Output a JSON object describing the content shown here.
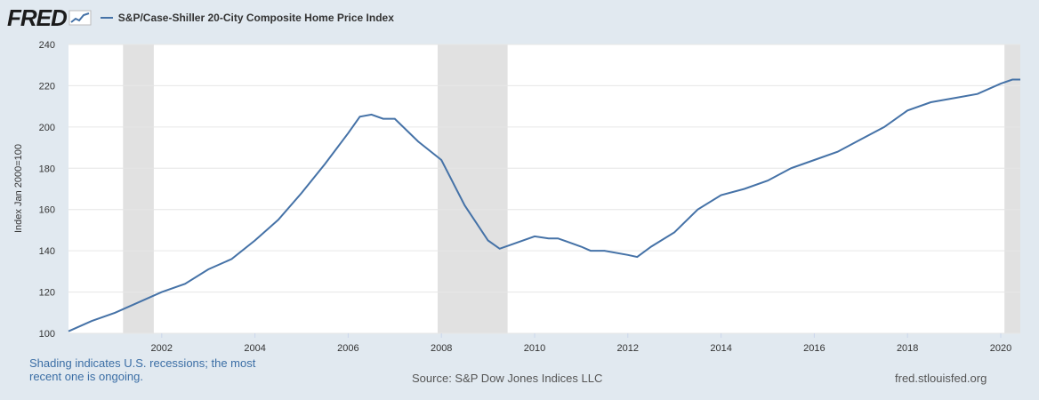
{
  "brand": {
    "logo_text": "FRED"
  },
  "chart_data": {
    "type": "line",
    "series_name": "S&P/Case-Shiller 20-City Composite Home Price Index",
    "ylabel": "Index Jan 2000=100",
    "xlabel": "",
    "ylim": [
      100,
      240
    ],
    "yticks": [
      100,
      120,
      140,
      160,
      180,
      200,
      220,
      240
    ],
    "xlim": [
      2000.0,
      2020.42
    ],
    "xticks": [
      "2002",
      "2004",
      "2006",
      "2008",
      "2010",
      "2012",
      "2014",
      "2016",
      "2018",
      "2020"
    ],
    "xtick_values": [
      2002,
      2004,
      2006,
      2008,
      2010,
      2012,
      2014,
      2016,
      2018,
      2020
    ],
    "recessions": [
      [
        2001.17,
        2001.83
      ],
      [
        2007.92,
        2009.42
      ],
      [
        2020.08,
        2020.42
      ]
    ],
    "x": [
      2000.0,
      2000.5,
      2001.0,
      2001.5,
      2002.0,
      2002.5,
      2003.0,
      2003.5,
      2004.0,
      2004.5,
      2005.0,
      2005.5,
      2006.0,
      2006.25,
      2006.5,
      2006.75,
      2007.0,
      2007.5,
      2008.0,
      2008.5,
      2009.0,
      2009.25,
      2009.5,
      2010.0,
      2010.3,
      2010.5,
      2011.0,
      2011.2,
      2011.5,
      2012.0,
      2012.2,
      2012.5,
      2013.0,
      2013.5,
      2014.0,
      2014.5,
      2015.0,
      2015.5,
      2016.0,
      2016.5,
      2017.0,
      2017.5,
      2018.0,
      2018.5,
      2019.0,
      2019.5,
      2020.0,
      2020.25,
      2020.42
    ],
    "values": [
      101,
      106,
      110,
      115,
      120,
      124,
      131,
      136,
      145,
      155,
      168,
      182,
      197,
      205,
      206,
      204,
      204,
      193,
      184,
      162,
      145,
      141,
      143,
      147,
      146,
      146,
      142,
      140,
      140,
      138,
      137,
      142,
      149,
      160,
      167,
      170,
      174,
      180,
      184,
      188,
      194,
      200,
      208,
      212,
      214,
      216,
      221,
      223,
      223
    ]
  },
  "footer": {
    "note_line1": "Shading indicates U.S. recessions; the most",
    "note_line2": "recent one is ongoing.",
    "source": "Source: S&P Dow Jones Indices LLC",
    "url": "fred.stlouisfed.org"
  },
  "colors": {
    "line": "#4572a7",
    "recession": "#e1e1e1",
    "grid": "#e6e6e6"
  }
}
